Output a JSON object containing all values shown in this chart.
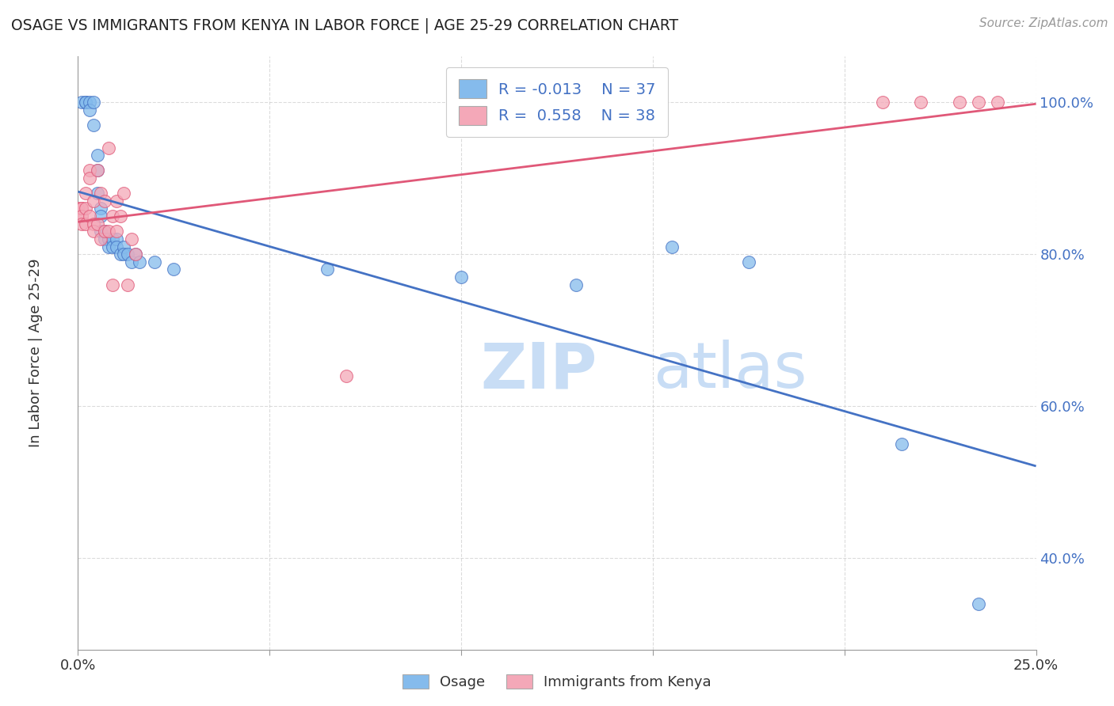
{
  "title": "OSAGE VS IMMIGRANTS FROM KENYA IN LABOR FORCE | AGE 25-29 CORRELATION CHART",
  "source": "Source: ZipAtlas.com",
  "ylabel": "In Labor Force | Age 25-29",
  "xlim": [
    0.0,
    0.25
  ],
  "ylim": [
    0.28,
    1.06
  ],
  "xticks": [
    0.0,
    0.05,
    0.1,
    0.15,
    0.2,
    0.25
  ],
  "yticks": [
    0.4,
    0.6,
    0.8,
    1.0
  ],
  "ytick_labels": [
    "40.0%",
    "60.0%",
    "80.0%",
    "100.0%"
  ],
  "xtick_labels": [
    "0.0%",
    "",
    "",
    "",
    "",
    "25.0%"
  ],
  "legend_labels": [
    "Osage",
    "Immigrants from Kenya"
  ],
  "R_osage": -0.013,
  "N_osage": 37,
  "R_kenya": 0.558,
  "N_kenya": 38,
  "color_osage": "#85BBEC",
  "color_kenya": "#F4A8B8",
  "line_color_osage": "#4472C4",
  "line_color_kenya": "#E05878",
  "osage_x": [
    0.001,
    0.002,
    0.002,
    0.003,
    0.003,
    0.004,
    0.004,
    0.005,
    0.005,
    0.005,
    0.006,
    0.006,
    0.006,
    0.007,
    0.007,
    0.008,
    0.008,
    0.009,
    0.009,
    0.01,
    0.01,
    0.011,
    0.012,
    0.012,
    0.013,
    0.014,
    0.015,
    0.016,
    0.02,
    0.025,
    0.065,
    0.1,
    0.13,
    0.155,
    0.175,
    0.215,
    0.235
  ],
  "osage_y": [
    1.0,
    1.0,
    1.0,
    1.0,
    0.99,
    1.0,
    0.97,
    0.93,
    0.91,
    0.88,
    0.86,
    0.85,
    0.83,
    0.83,
    0.82,
    0.82,
    0.81,
    0.82,
    0.81,
    0.82,
    0.81,
    0.8,
    0.81,
    0.8,
    0.8,
    0.79,
    0.8,
    0.79,
    0.79,
    0.78,
    0.78,
    0.77,
    0.76,
    0.81,
    0.79,
    0.55,
    0.34
  ],
  "kenya_x": [
    0.0,
    0.0,
    0.001,
    0.001,
    0.001,
    0.001,
    0.002,
    0.002,
    0.002,
    0.003,
    0.003,
    0.003,
    0.004,
    0.004,
    0.004,
    0.005,
    0.005,
    0.006,
    0.006,
    0.007,
    0.007,
    0.008,
    0.008,
    0.009,
    0.009,
    0.01,
    0.01,
    0.011,
    0.012,
    0.013,
    0.014,
    0.015,
    0.07,
    0.21,
    0.22,
    0.23,
    0.235,
    0.24
  ],
  "kenya_y": [
    0.86,
    0.85,
    0.86,
    0.86,
    0.85,
    0.84,
    0.88,
    0.86,
    0.84,
    0.91,
    0.9,
    0.85,
    0.87,
    0.84,
    0.83,
    0.91,
    0.84,
    0.88,
    0.82,
    0.87,
    0.83,
    0.94,
    0.83,
    0.85,
    0.76,
    0.87,
    0.83,
    0.85,
    0.88,
    0.76,
    0.82,
    0.8,
    0.64,
    1.0,
    1.0,
    1.0,
    1.0,
    1.0
  ],
  "watermark_zip": "ZIP",
  "watermark_atlas": "atlas",
  "background_color": "#ffffff",
  "grid_color": "#cccccc",
  "grid_alpha": 0.7
}
